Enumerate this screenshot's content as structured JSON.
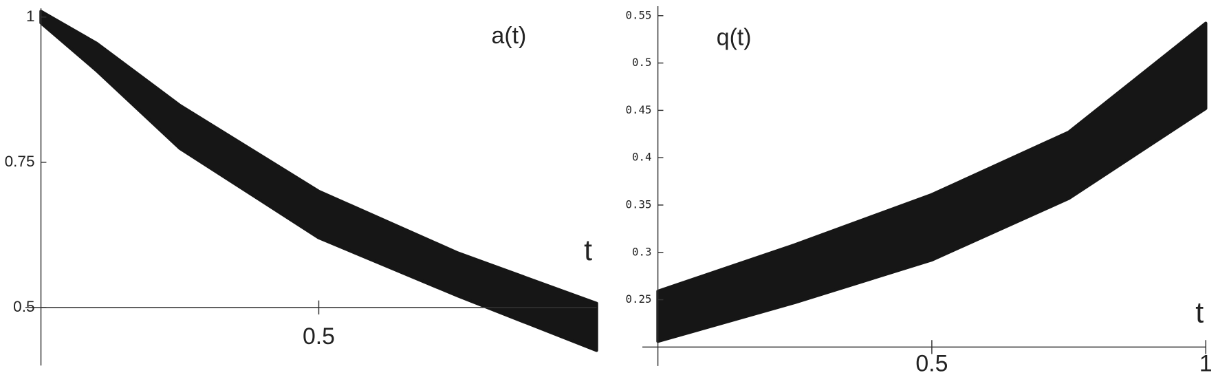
{
  "chart_data": [
    {
      "type": "band",
      "title": "a(t)",
      "x_label": "t",
      "x": [
        0,
        0.1,
        0.25,
        0.5,
        0.75,
        1
      ],
      "lower": [
        0.99,
        0.908,
        0.774,
        0.62,
        0.52,
        0.426
      ],
      "upper": [
        1.01,
        0.955,
        0.848,
        0.7,
        0.594,
        0.507
      ],
      "xlim": [
        0,
        1
      ],
      "ylim": [
        0.4,
        1.015
      ],
      "xticks": [
        0.5
      ],
      "yticks": [
        0.5,
        0.75,
        1
      ],
      "x_axis_at": 0.5,
      "color": "#161616"
    },
    {
      "type": "band",
      "title": "q(t)",
      "x_label": "t",
      "x": [
        0,
        0.25,
        0.5,
        0.75,
        1
      ],
      "lower": [
        0.206,
        0.247,
        0.292,
        0.357,
        0.452
      ],
      "upper": [
        0.259,
        0.308,
        0.361,
        0.427,
        0.542
      ],
      "xlim": [
        0,
        1
      ],
      "ylim": [
        0.18,
        0.56
      ],
      "xticks": [
        0.5,
        1
      ],
      "yticks": [
        0.25,
        0.3,
        0.35,
        0.4,
        0.45,
        0.5,
        0.55
      ],
      "x_axis_at": 0.2,
      "color": "#161616"
    }
  ]
}
